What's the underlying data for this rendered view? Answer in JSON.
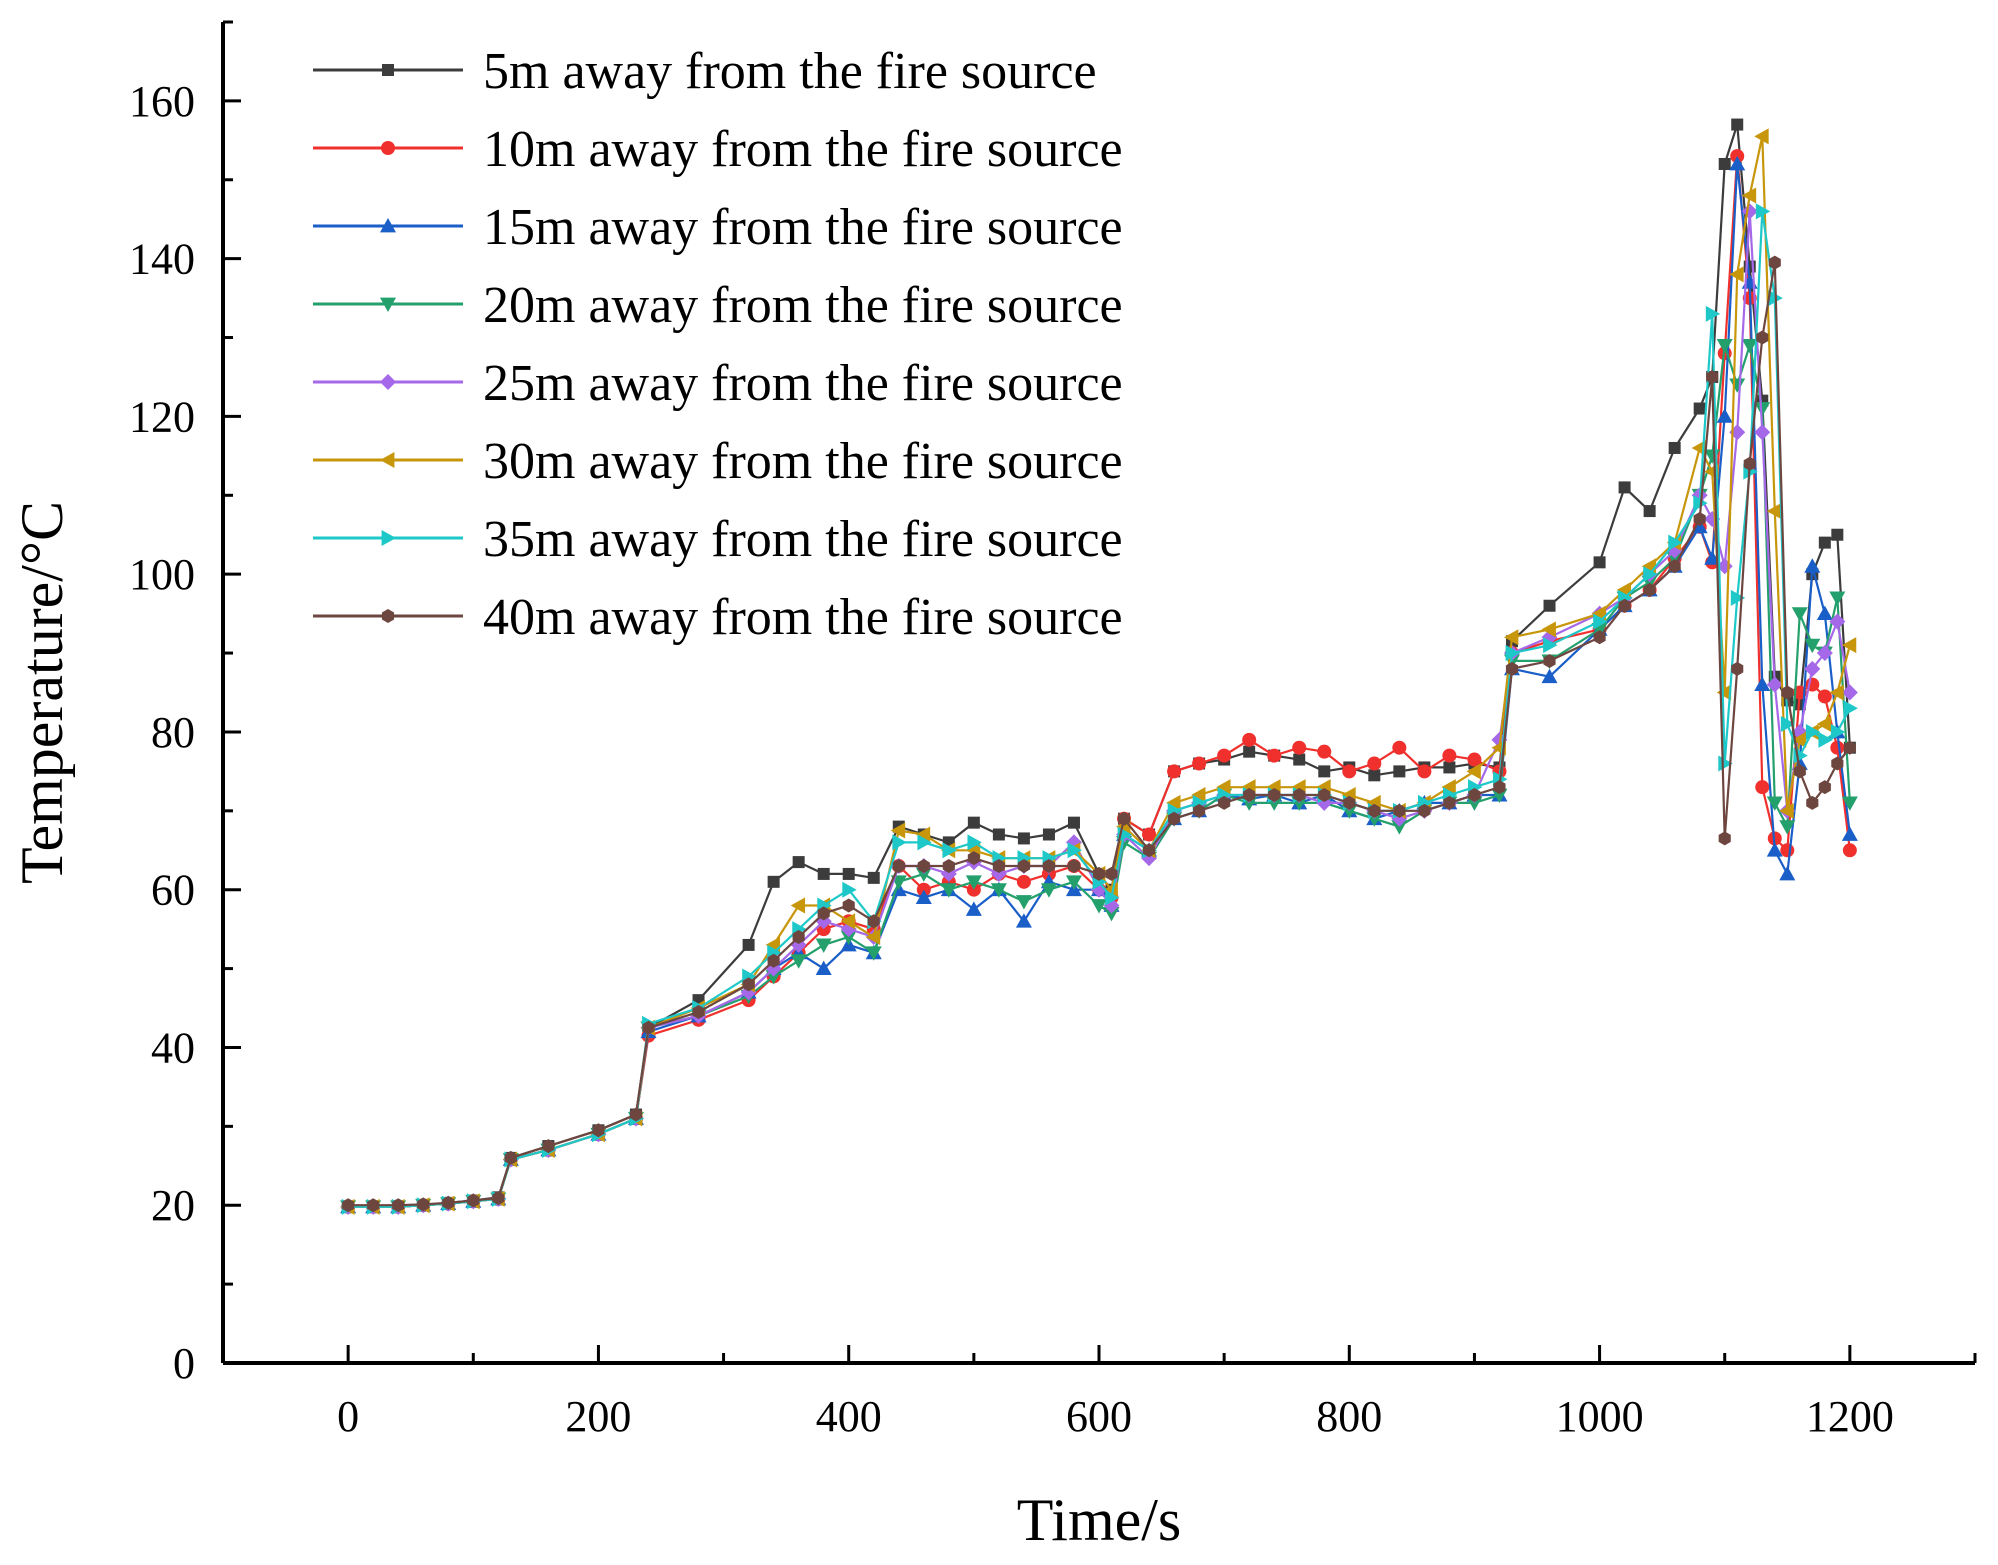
{
  "chart_data": {
    "type": "line",
    "title": "",
    "xlabel": "Time/s",
    "ylabel": "Temperature/°C",
    "xlim": [
      -100,
      1300
    ],
    "ylim": [
      0,
      170
    ],
    "xticks": [
      0,
      200,
      400,
      600,
      800,
      1000,
      1200
    ],
    "xtick_labels": [
      "0",
      "200",
      "400",
      "600",
      "800",
      "1000",
      "1200"
    ],
    "yticks": [
      0,
      20,
      40,
      60,
      80,
      100,
      120,
      140,
      160
    ],
    "ytick_labels": [
      "0",
      "20",
      "40",
      "60",
      "80",
      "100",
      "120",
      "140",
      "160"
    ],
    "legend_position": "top-left",
    "x": [
      0,
      20,
      40,
      60,
      80,
      100,
      120,
      130,
      160,
      200,
      230,
      240,
      280,
      320,
      340,
      360,
      380,
      400,
      420,
      440,
      460,
      480,
      500,
      520,
      540,
      560,
      580,
      600,
      610,
      620,
      640,
      660,
      680,
      700,
      720,
      740,
      760,
      780,
      800,
      820,
      840,
      860,
      880,
      900,
      920,
      930,
      960,
      1000,
      1020,
      1040,
      1060,
      1080,
      1090,
      1100,
      1110,
      1120,
      1130,
      1140,
      1150,
      1160,
      1170,
      1180,
      1190,
      1200
    ],
    "series": [
      {
        "name": "5m away from the fire source",
        "color": "#3c3c3c",
        "marker": "square",
        "values": [
          19.8,
          19.8,
          19.8,
          20,
          20.3,
          20.6,
          21,
          26,
          27.5,
          29.5,
          31.5,
          42.5,
          46,
          53,
          61,
          63.5,
          62,
          62,
          61.5,
          68,
          67,
          66,
          68.5,
          67,
          66.5,
          67,
          68.5,
          62,
          60,
          69,
          67,
          75,
          76,
          76.5,
          77.5,
          77,
          76.5,
          75,
          75.5,
          74.5,
          75,
          75.5,
          75.5,
          76,
          75.5,
          91.5,
          96,
          101.5,
          111,
          108,
          116,
          121,
          125,
          152,
          157,
          139,
          122,
          87,
          84,
          83.5,
          100,
          104,
          105,
          78
        ]
      },
      {
        "name": "10m away from the fire source",
        "color": "#f0302d",
        "marker": "circle",
        "values": [
          19.8,
          19.8,
          19.8,
          20,
          20.2,
          20.5,
          20.8,
          25.8,
          27,
          29,
          31,
          41.5,
          43.5,
          46,
          49,
          52,
          55,
          56,
          55,
          63,
          60,
          61,
          60,
          62,
          61,
          62,
          63,
          60,
          59,
          69,
          67,
          75,
          76,
          77,
          79,
          77,
          78,
          77.5,
          75,
          76,
          78,
          75,
          77,
          76.5,
          75,
          90,
          91.5,
          93,
          96,
          98,
          102,
          106,
          101.5,
          128,
          153,
          135,
          73,
          66.5,
          65,
          85,
          86,
          84.5,
          78,
          65
        ]
      },
      {
        "name": "15m away from the fire source",
        "color": "#1a5ec8",
        "marker": "triangle-up",
        "values": [
          19.8,
          19.8,
          19.8,
          20,
          20.2,
          20.5,
          20.8,
          25.8,
          27,
          29,
          31,
          42,
          44,
          47,
          50,
          52,
          50,
          53,
          52,
          60,
          59,
          60,
          57.5,
          60,
          56,
          61,
          60,
          60,
          58,
          67,
          65,
          69,
          70,
          72,
          71.5,
          72,
          71,
          72,
          70,
          69,
          70,
          71,
          71,
          72,
          72,
          88,
          87,
          93,
          96,
          98,
          101,
          106,
          102,
          120,
          152,
          137,
          86,
          65,
          62,
          76,
          101,
          95,
          80,
          67
        ]
      },
      {
        "name": "20m away from the fire source",
        "color": "#23a06c",
        "marker": "triangle-down",
        "values": [
          19.8,
          19.8,
          19.8,
          20,
          20.2,
          20.5,
          20.8,
          25.8,
          27,
          29,
          31,
          42.5,
          44,
          46.5,
          49,
          51,
          53,
          54,
          52,
          61,
          62,
          60,
          61,
          60,
          58.5,
          60,
          61,
          58,
          57,
          66,
          64,
          69,
          70,
          72,
          71,
          71,
          71,
          71,
          70,
          69,
          68,
          70,
          71,
          71,
          72,
          89,
          89,
          93,
          97,
          99,
          102,
          110,
          115,
          129,
          124,
          129,
          121,
          71,
          68,
          95,
          91,
          90,
          97,
          71
        ]
      },
      {
        "name": "25m away from the fire source",
        "color": "#a468e8",
        "marker": "diamond",
        "values": [
          19.8,
          19.8,
          19.8,
          20,
          20.2,
          20.5,
          20.8,
          25.8,
          27,
          29,
          31,
          42.5,
          44,
          47,
          50,
          53,
          56,
          55,
          54,
          63,
          63,
          62,
          63.5,
          62,
          63,
          63,
          66,
          60,
          58,
          67,
          64,
          70,
          71,
          72,
          72,
          72,
          72,
          71,
          71,
          70,
          69,
          70,
          71,
          72,
          79,
          90,
          92,
          95,
          97,
          100,
          103,
          110,
          107,
          101,
          118,
          146,
          118,
          86,
          70,
          80,
          88,
          90,
          94,
          85
        ]
      },
      {
        "name": "30m away from the fire source",
        "color": "#c8960a",
        "marker": "triangle-left",
        "values": [
          19.8,
          19.8,
          19.8,
          20,
          20.2,
          20.5,
          20.8,
          25.8,
          27,
          29,
          31,
          42.5,
          45,
          48,
          53,
          58,
          58,
          56,
          54,
          67.5,
          67,
          65,
          65,
          64,
          64,
          64,
          65,
          62,
          60,
          68,
          65,
          71,
          72,
          73,
          73,
          73,
          73,
          73,
          72,
          71,
          70,
          71,
          73,
          75,
          78,
          92,
          93,
          95,
          98,
          101,
          104,
          116,
          113,
          85,
          138,
          148,
          155.5,
          108,
          70,
          79,
          80,
          81,
          85,
          91
        ]
      },
      {
        "name": "35m away from the fire source",
        "color": "#1ec8c8",
        "marker": "triangle-right",
        "values": [
          19.8,
          19.8,
          19.8,
          20,
          20.2,
          20.5,
          20.8,
          25.8,
          27,
          29,
          31,
          43,
          45,
          49,
          52,
          55,
          58,
          60,
          56,
          66,
          66,
          65,
          66,
          64,
          64,
          64,
          65,
          61,
          59,
          67,
          65,
          70,
          71,
          72,
          72,
          72,
          72,
          72,
          71,
          70,
          70,
          71,
          72,
          73,
          74,
          90,
          91,
          94,
          97,
          100,
          104,
          109,
          133,
          76,
          97,
          113,
          146,
          135,
          81,
          77,
          80,
          79,
          80,
          83
        ]
      },
      {
        "name": "40m away from the fire source",
        "color": "#6e4640",
        "marker": "hexagon",
        "values": [
          20,
          20,
          20,
          20.1,
          20.3,
          20.6,
          20.9,
          26,
          27.5,
          29.5,
          31.5,
          42.5,
          44.5,
          48,
          51,
          54,
          57,
          58,
          56,
          63,
          63,
          63,
          64,
          63,
          63,
          63,
          63,
          62,
          62,
          69,
          65,
          69,
          70,
          71,
          72,
          72,
          72,
          72,
          71,
          70,
          70,
          70,
          71,
          72,
          73,
          88,
          89,
          92,
          96,
          98,
          101,
          107,
          125,
          66.5,
          88,
          114,
          130,
          139.5,
          85,
          75,
          71,
          73,
          76,
          78
        ]
      }
    ]
  }
}
